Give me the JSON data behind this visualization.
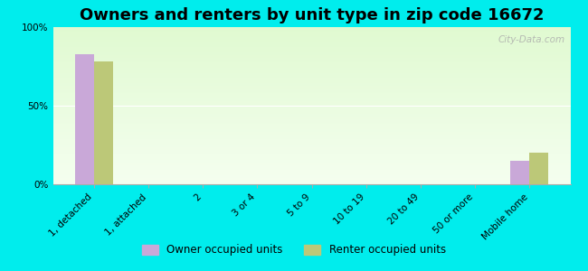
{
  "title": "Owners and renters by unit type in zip code 16672",
  "categories": [
    "1, detached",
    "1, attached",
    "2",
    "3 or 4",
    "5 to 9",
    "10 to 19",
    "20 to 49",
    "50 or more",
    "Mobile home"
  ],
  "owner_values": [
    83,
    0,
    0,
    0,
    0,
    0,
    0,
    0,
    15
  ],
  "renter_values": [
    78,
    0,
    0,
    0,
    0,
    0,
    0,
    0,
    20
  ],
  "owner_color": "#c9a8d8",
  "renter_color": "#bcc878",
  "outer_bg": "#00eded",
  "plot_bg_top": "#d8f0c8",
  "plot_bg_bottom": "#f0fce8",
  "ylim": [
    0,
    100
  ],
  "yticks": [
    0,
    50,
    100
  ],
  "ytick_labels": [
    "0%",
    "50%",
    "100%"
  ],
  "bar_width": 0.35,
  "legend_owner": "Owner occupied units",
  "legend_renter": "Renter occupied units",
  "watermark": "City-Data.com",
  "title_fontsize": 13,
  "tick_fontsize": 7.5
}
